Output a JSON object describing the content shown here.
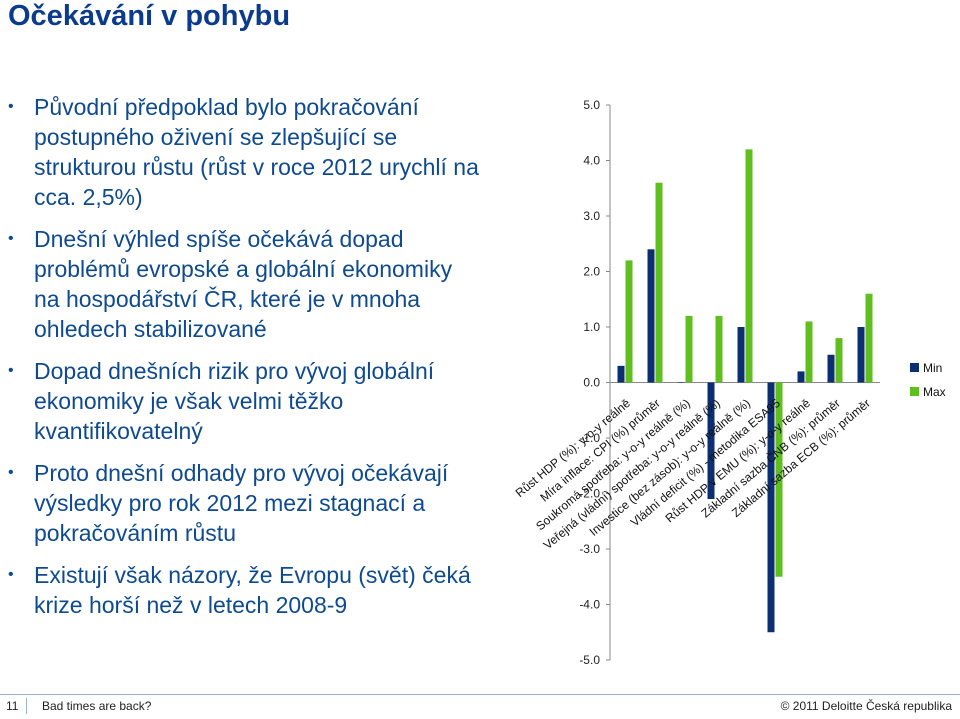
{
  "slide": {
    "title": "Očekávání v pohybu",
    "bullets": [
      "Původní předpoklad bylo pokračování postupného oživení se zlepšující se strukturou růstu (růst v roce 2012 urychlí na cca. 2,5%)",
      "Dnešní výhled spíše očekává dopad problémů evropské a globální ekonomiky na hospodářství ČR, které je v mnoha ohledech stabilizované",
      "Dopad dnešních rizik pro vývoj globální ekonomiky je však velmi těžko kvantifikovatelný",
      "Proto dnešní odhady pro vývoj očekávají výsledky pro rok 2012 mezi stagnací a pokračováním růstu",
      "Existují však názory, že Evropu (svět) čeká krize horší než v letech 2008-9"
    ],
    "bullet_glyph": "•"
  },
  "footer": {
    "page_number": "11",
    "left_text": "Bad times are back?",
    "right_text": "© 2011 Deloitte Česká republika"
  },
  "colors": {
    "title": "#0b3b8c",
    "text": "#0e4a8f",
    "min_series": "#0c2f72",
    "max_series": "#5fbf1e"
  },
  "chart_data": {
    "type": "bar",
    "categories": [
      "Růst HDP (%): y-o-y reálně",
      "Míra inflace: CPI (%) průměr",
      "Soukromá spotřeba: y-o-y reálně (%)",
      "Veřejná (vládní) spotřeba: y-o-y reálně (%)",
      "Investice (bez zásob): y-o-y reálně (%)",
      "Vládní deficit (%) - metodika ESA95",
      "Růst HDP v EMU (%): y-o-y reálně",
      "Základní sazba ČNB (%): průměr",
      "Základní sazba ECB (%): průměr"
    ],
    "series": [
      {
        "name": "Min",
        "values": [
          0.3,
          2.4,
          0.0,
          -2.1,
          1.0,
          -4.5,
          0.2,
          0.5,
          1.0
        ]
      },
      {
        "name": "Max",
        "values": [
          2.2,
          3.6,
          1.2,
          1.2,
          4.2,
          -3.5,
          1.1,
          0.8,
          1.6
        ]
      }
    ],
    "y_ticks": [
      "5.0",
      "4.0",
      "3.0",
      "2.0",
      "1.0",
      "0.0",
      "-1.0",
      "-2.0",
      "-3.0",
      "-4.0",
      "-5.0"
    ],
    "ylim": [
      -5,
      5
    ],
    "legend_position": "right",
    "grid": false
  }
}
